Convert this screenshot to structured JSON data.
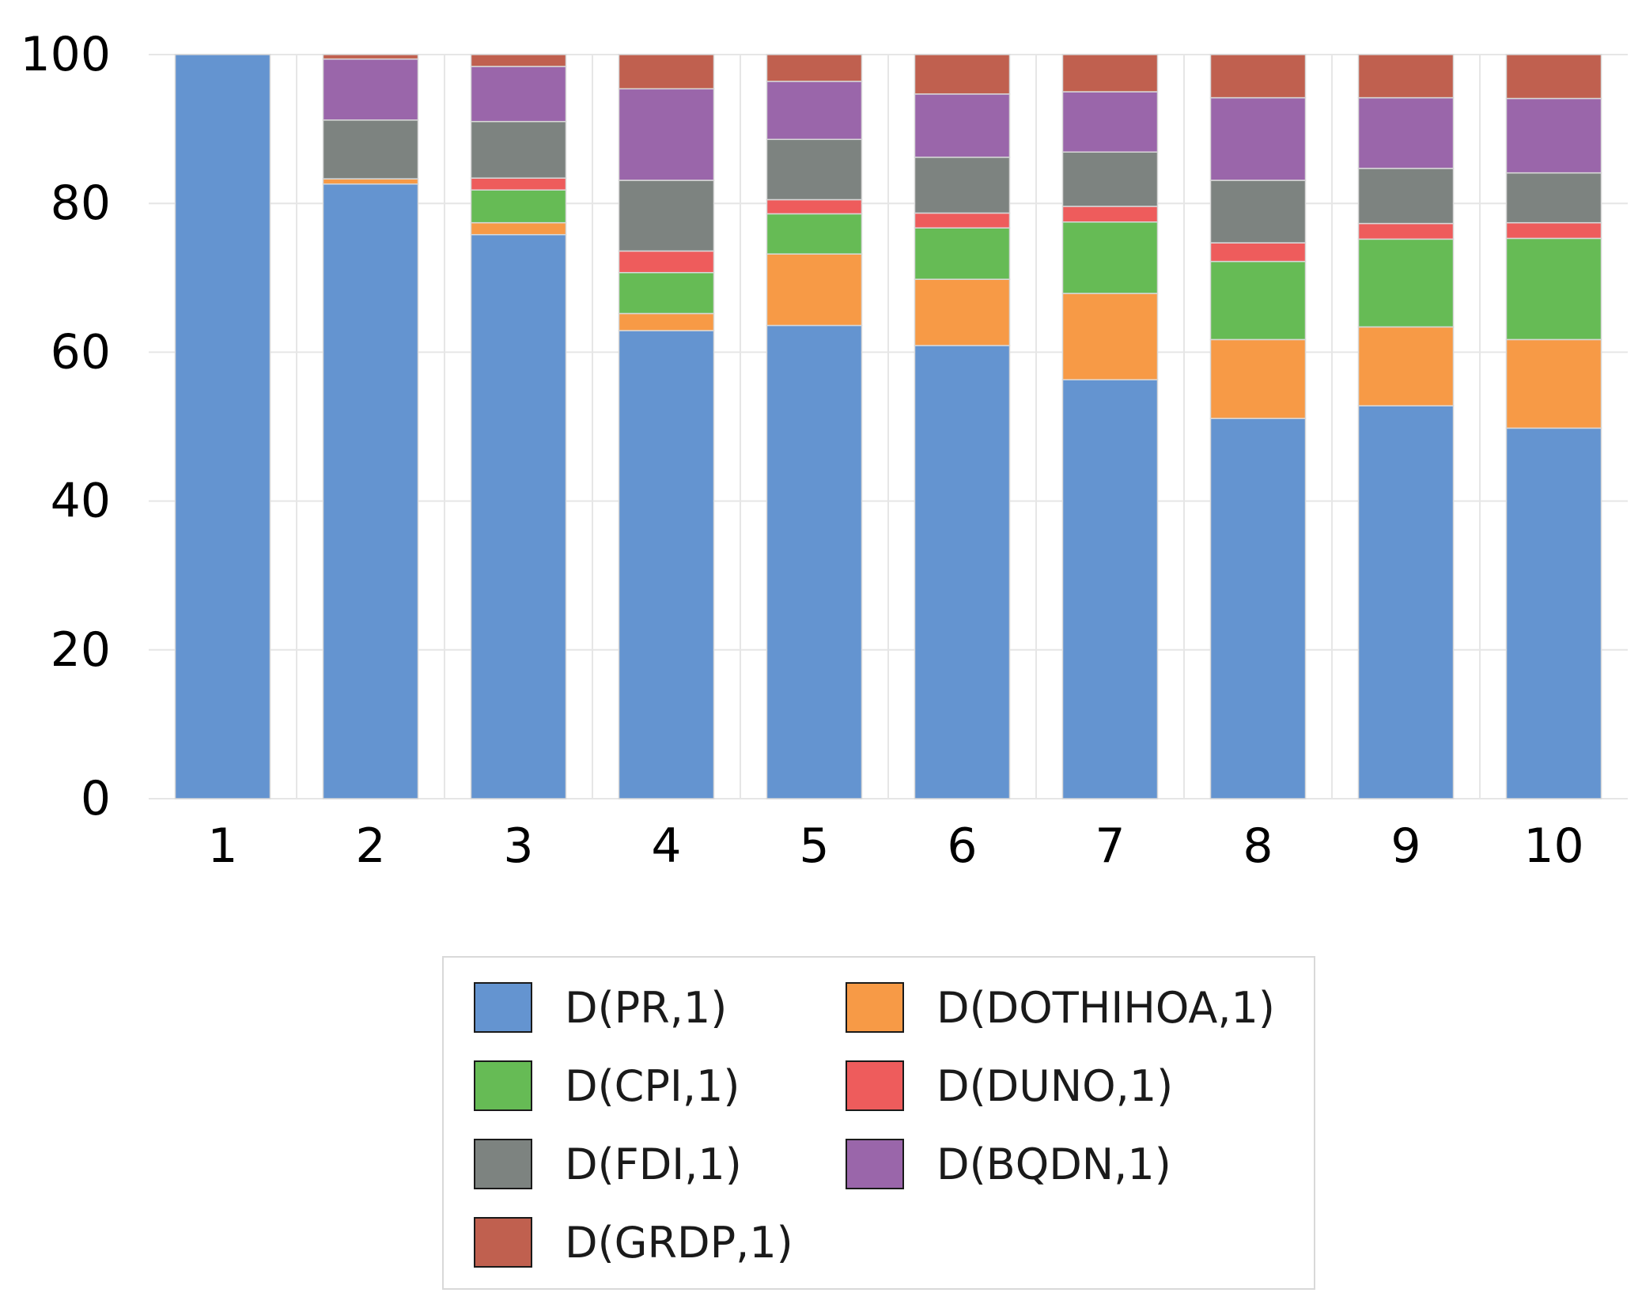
{
  "chart_data": {
    "type": "bar",
    "stacked": true,
    "title": "",
    "xlabel": "",
    "ylabel": "",
    "ylim": [
      0,
      100
    ],
    "yticks": [
      0,
      20,
      40,
      60,
      80,
      100
    ],
    "grid": true,
    "legend_position": "bottom-center",
    "categories": [
      "1",
      "2",
      "3",
      "4",
      "5",
      "6",
      "7",
      "8",
      "9",
      "10"
    ],
    "series": [
      {
        "name": "D(PR,1)",
        "color": "#6494d0",
        "values": [
          100,
          82.6,
          75.8,
          62.9,
          63.6,
          60.9,
          56.3,
          51.1,
          52.8,
          49.8
        ]
      },
      {
        "name": "D(DOTHIHOA,1)",
        "color": "#f79a46",
        "values": [
          0,
          0.7,
          1.6,
          2.3,
          9.6,
          8.9,
          11.6,
          10.6,
          10.6,
          11.9
        ]
      },
      {
        "name": "D(CPI,1)",
        "color": "#66bb55",
        "values": [
          0,
          0,
          4.4,
          5.5,
          5.4,
          6.9,
          9.6,
          10.5,
          11.8,
          13.6
        ]
      },
      {
        "name": "D(DUNO,1)",
        "color": "#ee5c5c",
        "values": [
          0,
          0,
          1.6,
          2.9,
          1.9,
          2.0,
          2.1,
          2.5,
          2.1,
          2.1
        ]
      },
      {
        "name": "D(FDI,1)",
        "color": "#7d8380",
        "values": [
          0,
          7.9,
          7.6,
          9.5,
          8.1,
          7.5,
          7.3,
          8.4,
          7.4,
          6.7
        ]
      },
      {
        "name": "D(BQDN,1)",
        "color": "#9a66aa",
        "values": [
          0,
          8.2,
          7.4,
          12.3,
          7.8,
          8.5,
          8.1,
          11.1,
          9.5,
          10.0
        ]
      },
      {
        "name": "D(GRDP,1)",
        "color": "#c0604f",
        "values": [
          0,
          0.6,
          1.6,
          4.6,
          3.6,
          5.3,
          5.0,
          5.8,
          5.8,
          5.9
        ]
      }
    ],
    "legend_order": [
      "D(PR,1)",
      "D(DOTHIHOA,1)",
      "D(CPI,1)",
      "D(DUNO,1)",
      "D(FDI,1)",
      "D(BQDN,1)",
      "D(GRDP,1)"
    ]
  }
}
